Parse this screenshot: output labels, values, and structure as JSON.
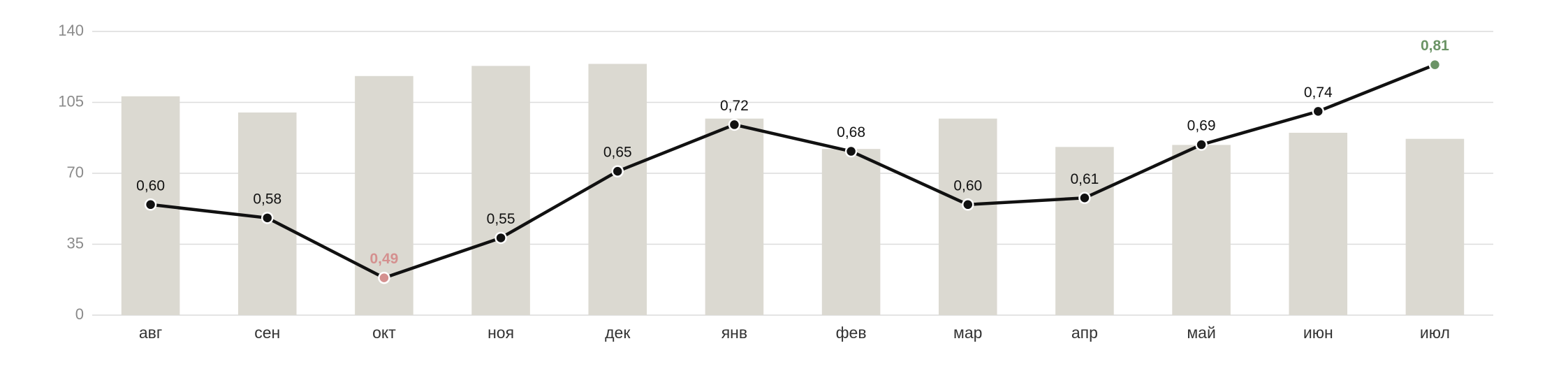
{
  "chart_data": {
    "type": "combo",
    "categories": [
      "авг",
      "сен",
      "окт",
      "ноя",
      "дек",
      "янв",
      "фев",
      "мар",
      "апр",
      "май",
      "июн",
      "июл"
    ],
    "bars": {
      "values": [
        108,
        100,
        118,
        123,
        124,
        97,
        82,
        97,
        83,
        84,
        90,
        87
      ],
      "color": "#dbd9d1"
    },
    "line": {
      "values": [
        0.6,
        0.58,
        0.49,
        0.55,
        0.65,
        0.72,
        0.68,
        0.6,
        0.61,
        0.69,
        0.74,
        0.81
      ],
      "value_labels": [
        "0,60",
        "0,58",
        "0,49",
        "0,55",
        "0,65",
        "0,72",
        "0,68",
        "0,60",
        "0,61",
        "0,69",
        "0,74",
        "0,81"
      ],
      "color": "#111111",
      "axis": "y2",
      "min_color": "#d4908f",
      "max_color": "#6b9466"
    },
    "ylim": [
      0,
      140
    ],
    "yticks": [
      0,
      35,
      70,
      105,
      140
    ],
    "y2lim": [
      0.434,
      0.86
    ],
    "grid": true
  }
}
